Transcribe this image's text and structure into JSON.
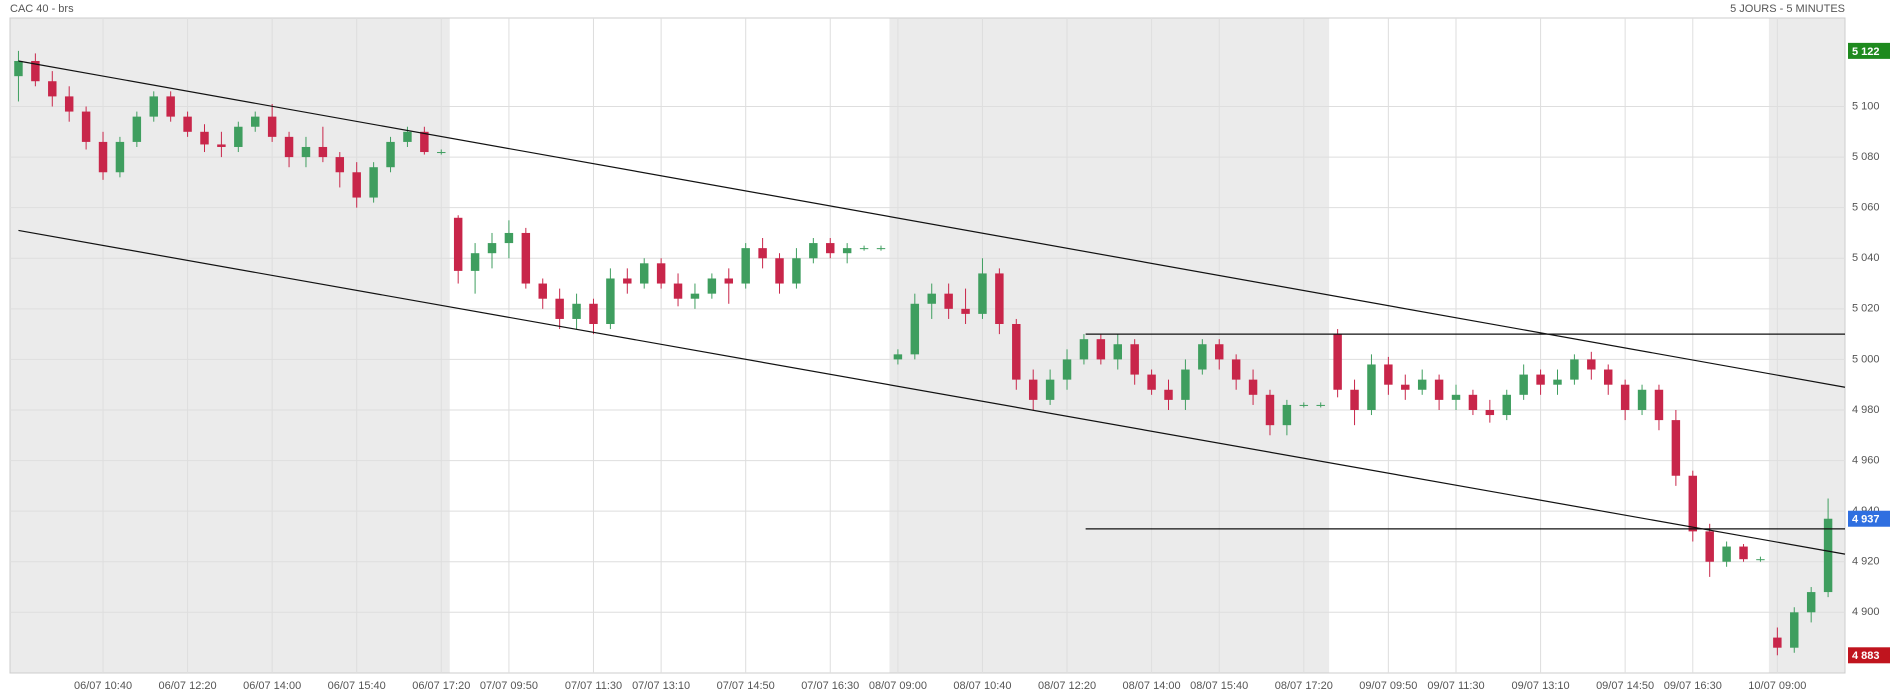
{
  "chart_data": {
    "type": "candlestick",
    "title": "CAC 40 - brs",
    "subtitle": "5 JOURS - 5 MINUTES",
    "up_color": "#3f9e5f",
    "down_color": "#c8264a",
    "grid": true,
    "ylim": [
      4876,
      5135
    ],
    "yticks": [
      {
        "value": 4900,
        "label": "4 900"
      },
      {
        "value": 4920,
        "label": "4 920"
      },
      {
        "value": 4940,
        "label": "4 940"
      },
      {
        "value": 4960,
        "label": "4 960"
      },
      {
        "value": 4980,
        "label": "4 980"
      },
      {
        "value": 5000,
        "label": "5 000"
      },
      {
        "value": 5020,
        "label": "5 020"
      },
      {
        "value": 5040,
        "label": "5 040"
      },
      {
        "value": 5060,
        "label": "5 060"
      },
      {
        "value": 5080,
        "label": "5 080"
      },
      {
        "value": 5100,
        "label": "5 100"
      }
    ],
    "categories": [
      null,
      null,
      null,
      null,
      null,
      "06/07 10:40",
      null,
      null,
      null,
      null,
      "06/07 12:20",
      null,
      null,
      null,
      null,
      "06/07 14:00",
      null,
      null,
      null,
      null,
      "06/07 15:40",
      null,
      null,
      null,
      null,
      "06/07 17:20",
      null,
      null,
      null,
      "07/07 09:50",
      null,
      null,
      null,
      null,
      "07/07 11:30",
      null,
      null,
      null,
      "07/07 13:10",
      null,
      null,
      null,
      null,
      "07/07 14:50",
      null,
      null,
      null,
      null,
      "07/07 16:30",
      null,
      null,
      null,
      "08/07 09:00",
      null,
      null,
      null,
      null,
      "08/07 10:40",
      null,
      null,
      null,
      null,
      "08/07 12:20",
      null,
      null,
      null,
      null,
      "08/07 14:00",
      null,
      null,
      null,
      "08/07 15:40",
      null,
      null,
      null,
      null,
      "08/07 17:20",
      null,
      null,
      null,
      null,
      "09/07 09:50",
      null,
      null,
      null,
      "09/07 11:30",
      null,
      null,
      null,
      null,
      "09/07 13:10",
      null,
      null,
      null,
      null,
      "09/07 14:50",
      null,
      null,
      null,
      "09/07 16:30",
      null,
      null,
      null,
      null,
      "10/07 09:00",
      null,
      null,
      null
    ],
    "open": [
      5112,
      5118,
      5110,
      5104,
      5098,
      5086,
      5074,
      5086,
      5096,
      5104,
      5096,
      5090,
      5085,
      5084,
      5092,
      5096,
      5088,
      5080,
      5084,
      5080,
      5074,
      5064,
      5076,
      5086,
      5090,
      5082,
      5056,
      5035,
      5042,
      5046,
      5050,
      5030,
      5024,
      5016,
      5022,
      5014,
      5032,
      5030,
      5038,
      5030,
      5024,
      5026,
      5032,
      5030,
      5044,
      5040,
      5030,
      5040,
      5046,
      5042,
      5044,
      5044,
      5000,
      5002,
      5022,
      5026,
      5020,
      5018,
      5034,
      5014,
      4992,
      4984,
      4992,
      5000,
      5008,
      5000,
      5006,
      4994,
      4988,
      4984,
      4996,
      5006,
      5000,
      4992,
      4986,
      4974,
      4982,
      4982,
      5010,
      4988,
      4980,
      4998,
      4990,
      4988,
      4992,
      4984,
      4986,
      4980,
      4978,
      4986,
      4994,
      4990,
      4992,
      5000,
      4996,
      4990,
      4980,
      4988,
      4976,
      4954,
      4932,
      4920,
      4926,
      4921,
      4890,
      4886,
      4900,
      4908
    ],
    "high": [
      5122,
      5121,
      5114,
      5108,
      5100,
      5090,
      5088,
      5098,
      5106,
      5106,
      5098,
      5093,
      5090,
      5094,
      5098,
      5101,
      5090,
      5088,
      5092,
      5082,
      5078,
      5078,
      5088,
      5092,
      5092,
      5083,
      5057,
      5046,
      5050,
      5055,
      5052,
      5032,
      5028,
      5026,
      5024,
      5036,
      5036,
      5040,
      5040,
      5034,
      5030,
      5034,
      5036,
      5046,
      5048,
      5042,
      5044,
      5048,
      5048,
      5046,
      5045,
      5045,
      5004,
      5026,
      5030,
      5030,
      5028,
      5040,
      5036,
      5016,
      4996,
      4996,
      5004,
      5010,
      5010,
      5010,
      5008,
      4996,
      4992,
      5000,
      5008,
      5008,
      5002,
      4996,
      4988,
      4984,
      4983,
      4983,
      5012,
      4992,
      5002,
      5001,
      4994,
      4996,
      4994,
      4990,
      4988,
      4984,
      4988,
      4998,
      4996,
      4996,
      5002,
      5003,
      4998,
      4992,
      4990,
      4990,
      4980,
      4956,
      4935,
      4928,
      4927,
      4922,
      4894,
      4902,
      4910,
      4945
    ],
    "low": [
      5102,
      5108,
      5100,
      5094,
      5083,
      5071,
      5072,
      5084,
      5094,
      5094,
      5088,
      5082,
      5080,
      5082,
      5090,
      5086,
      5076,
      5076,
      5078,
      5068,
      5060,
      5062,
      5074,
      5084,
      5081,
      5081,
      5030,
      5026,
      5036,
      5040,
      5028,
      5020,
      5012,
      5012,
      5010,
      5012,
      5026,
      5028,
      5028,
      5021,
      5020,
      5024,
      5022,
      5028,
      5036,
      5026,
      5028,
      5038,
      5040,
      5038,
      5043,
      5043,
      4998,
      5000,
      5016,
      5016,
      5014,
      5016,
      5010,
      4988,
      4980,
      4982,
      4988,
      4998,
      4998,
      4996,
      4990,
      4986,
      4980,
      4980,
      4994,
      4996,
      4988,
      4982,
      4970,
      4970,
      4981,
      4981,
      4985,
      4974,
      4978,
      4986,
      4984,
      4986,
      4980,
      4980,
      4978,
      4975,
      4976,
      4984,
      4986,
      4986,
      4990,
      4992,
      4986,
      4976,
      4978,
      4972,
      4950,
      4928,
      4914,
      4918,
      4920,
      4920,
      4883,
      4884,
      4896,
      4906
    ],
    "close": [
      5118,
      5110,
      5104,
      5098,
      5086,
      5074,
      5086,
      5096,
      5104,
      5096,
      5090,
      5085,
      5084,
      5092,
      5096,
      5088,
      5080,
      5084,
      5080,
      5074,
      5064,
      5076,
      5086,
      5090,
      5082,
      5082,
      5035,
      5042,
      5046,
      5050,
      5030,
      5024,
      5016,
      5022,
      5014,
      5032,
      5030,
      5038,
      5030,
      5024,
      5026,
      5032,
      5030,
      5044,
      5040,
      5030,
      5040,
      5046,
      5042,
      5044,
      5044,
      5044,
      5002,
      5022,
      5026,
      5020,
      5018,
      5034,
      5014,
      4992,
      4984,
      4992,
      5000,
      5008,
      5000,
      5006,
      4994,
      4988,
      4984,
      4996,
      5006,
      5000,
      4992,
      4986,
      4974,
      4982,
      4982,
      4982,
      4988,
      4980,
      4998,
      4990,
      4988,
      4992,
      4984,
      4986,
      4980,
      4978,
      4986,
      4994,
      4990,
      4992,
      5000,
      4996,
      4990,
      4980,
      4988,
      4976,
      4954,
      4932,
      4920,
      4926,
      4921,
      4921,
      4886,
      4900,
      4908,
      4937
    ],
    "trendlines": [
      {
        "start": [
          0.5,
          5118
        ],
        "end": [
          108.5,
          4989
        ]
      },
      {
        "start": [
          0.5,
          5051
        ],
        "end": [
          108.5,
          4923
        ]
      },
      {
        "start": [
          63.6,
          5010
        ],
        "end": [
          108.5,
          5010
        ]
      },
      {
        "start": [
          63.6,
          4933
        ],
        "end": [
          108.5,
          4933
        ]
      }
    ],
    "price_badges": [
      {
        "value": 5122,
        "label": "5 122",
        "color": "#1e8a1e"
      },
      {
        "value": 4937,
        "label": "4 937",
        "color": "#2f6fe0"
      },
      {
        "value": 4883,
        "label": "4 883",
        "color": "#c0141e"
      }
    ]
  }
}
